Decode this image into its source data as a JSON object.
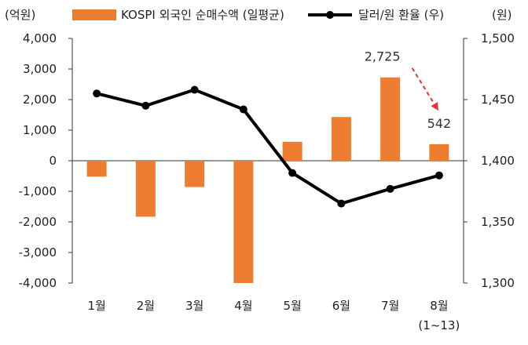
{
  "chart_data": {
    "type": "bar+line",
    "categories": [
      "1월",
      "2월",
      "3월",
      "4월",
      "5월",
      "6월",
      "7월",
      "8월"
    ],
    "category_note": "(1~13)",
    "series": [
      {
        "name": "KOSPI 외국인 순매수액 (일평균)",
        "type": "bar",
        "axis": "left",
        "color": "#ED7D31",
        "values": [
          -520,
          -1830,
          -860,
          -4000,
          620,
          1430,
          2725,
          542
        ]
      },
      {
        "name": "달러/원 환율 (우)",
        "type": "line",
        "axis": "right",
        "color": "#000000",
        "values": [
          1455,
          1445,
          1458,
          1442,
          1390,
          1365,
          1377,
          1388
        ]
      }
    ],
    "left_axis": {
      "unit_label": "(억원)",
      "range": [
        -4000,
        4000
      ],
      "ticks": [
        4000,
        3000,
        2000,
        1000,
        0,
        -1000,
        -2000,
        -3000,
        -4000
      ],
      "tick_labels": [
        "4,000",
        "3,000",
        "2,000",
        "1,000",
        "0",
        "-1,000",
        "-2,000",
        "-3,000",
        "-4,000"
      ]
    },
    "right_axis": {
      "unit_label": "(원)",
      "range": [
        1300,
        1500
      ],
      "ticks": [
        1500,
        1450,
        1400,
        1350,
        1300
      ],
      "tick_labels": [
        "1,500",
        "1,450",
        "1,400",
        "1,350",
        "1,300"
      ]
    },
    "annotations": [
      {
        "text": "2,725",
        "category_index": 6,
        "value": 2725
      },
      {
        "text": "542",
        "category_index": 7,
        "value": 542
      }
    ],
    "annotation_arrow": {
      "color": "#E8322F",
      "style": "dashed",
      "from_index": 6,
      "to_index": 7
    },
    "legend_position": "top",
    "grid": false
  }
}
